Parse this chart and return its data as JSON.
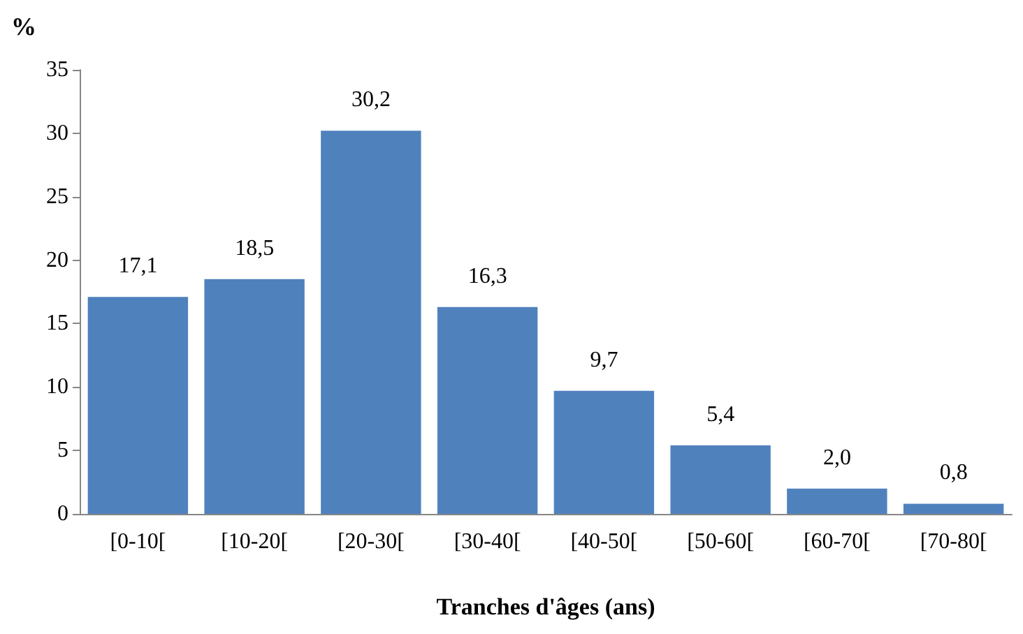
{
  "chart_data": {
    "type": "bar",
    "xlabel": "Tranches d'âges (ans)",
    "ylabel": "%",
    "categories": [
      "[0-10[",
      "[10-20[",
      "[20-30[",
      "[30-40[",
      "[40-50[",
      "[50-60[",
      "[60-70[",
      "[70-80["
    ],
    "values": [
      17.1,
      18.5,
      30.2,
      16.3,
      9.7,
      5.4,
      2.0,
      0.8
    ],
    "value_labels": [
      "17,1",
      "18,5",
      "30,2",
      "16,3",
      "9,7",
      "5,4",
      "2,0",
      "0,8"
    ],
    "color": "#4f81bd",
    "ylim": [
      0,
      35
    ],
    "yticks": [
      0,
      5,
      10,
      15,
      20,
      25,
      30,
      35
    ],
    "grid": false
  }
}
